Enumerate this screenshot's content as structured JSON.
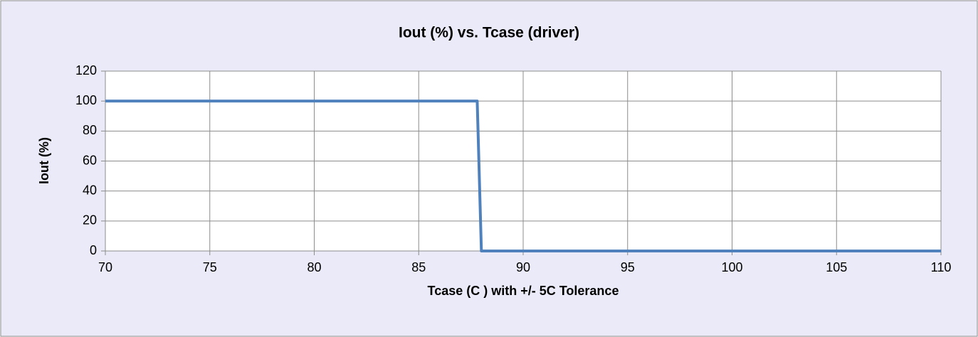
{
  "chart_data": {
    "type": "line",
    "title": "Iout (%) vs. Tcase (driver)",
    "x_label": "Tcase (C ) with +/- 5C Tolerance",
    "y_label": "Iout (%)",
    "x": [
      70,
      87.8,
      88,
      110
    ],
    "values": [
      100,
      100,
      0,
      0
    ],
    "color": "#4f81bd",
    "xlim": [
      70,
      110
    ],
    "xticks": [
      70,
      75,
      80,
      85,
      90,
      95,
      100,
      105,
      110
    ],
    "ylim": [
      0,
      120
    ],
    "yticks": [
      0,
      20,
      40,
      60,
      80,
      100,
      120
    ],
    "grid": true
  }
}
